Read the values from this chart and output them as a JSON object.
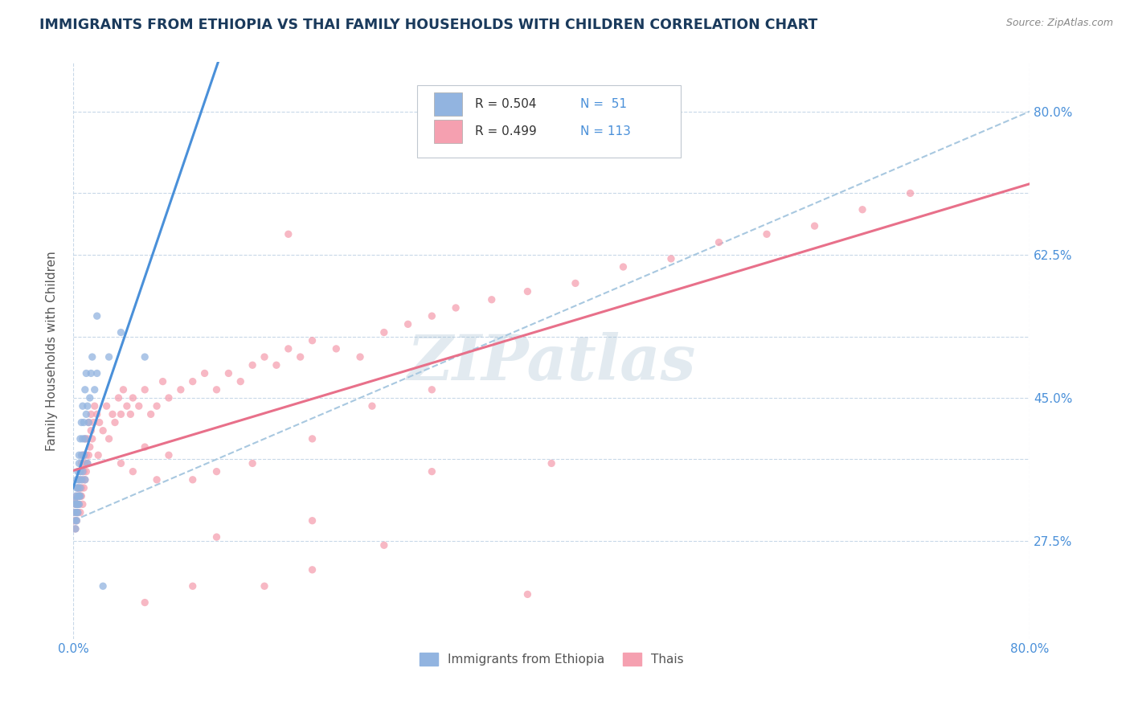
{
  "title": "IMMIGRANTS FROM ETHIOPIA VS THAI FAMILY HOUSEHOLDS WITH CHILDREN CORRELATION CHART",
  "source_text": "Source: ZipAtlas.com",
  "ylabel": "Family Households with Children",
  "xmin": 0.0,
  "xmax": 0.8,
  "ymin": 0.155,
  "ymax": 0.86,
  "ytick_positions": [
    0.275,
    0.375,
    0.45,
    0.525,
    0.625,
    0.7,
    0.8
  ],
  "ytick_labels": [
    "27.5%",
    "",
    "45.0%",
    "",
    "62.5%",
    "",
    "80.0%"
  ],
  "background_color": "#ffffff",
  "grid_color": "#c8d8e8",
  "title_color": "#1a3a5c",
  "watermark_text": "ZIPatlas",
  "watermark_color": "#a0bcd0",
  "legend_r1": "R = 0.504",
  "legend_n1": "N =  51",
  "legend_r2": "R = 0.499",
  "legend_n2": "N = 113",
  "legend_label1": "Immigrants from Ethiopia",
  "legend_label2": "Thais",
  "scatter_color1": "#92b4e0",
  "scatter_color2": "#f5a0b0",
  "line_color1": "#4a90d9",
  "line_color2": "#e8708a",
  "trend_line_color": "#a8c8e0",
  "scatter_alpha": 0.75,
  "scatter_size": 45,
  "ethiopia_x": [
    0.001,
    0.001,
    0.002,
    0.002,
    0.002,
    0.002,
    0.003,
    0.003,
    0.003,
    0.003,
    0.003,
    0.004,
    0.004,
    0.004,
    0.004,
    0.004,
    0.005,
    0.005,
    0.005,
    0.005,
    0.005,
    0.006,
    0.006,
    0.006,
    0.006,
    0.007,
    0.007,
    0.007,
    0.008,
    0.008,
    0.008,
    0.009,
    0.009,
    0.01,
    0.01,
    0.01,
    0.011,
    0.011,
    0.012,
    0.012,
    0.013,
    0.014,
    0.015,
    0.016,
    0.018,
    0.02,
    0.025,
    0.03,
    0.04,
    0.06,
    0.02
  ],
  "ethiopia_y": [
    0.325,
    0.31,
    0.3,
    0.33,
    0.32,
    0.29,
    0.34,
    0.32,
    0.31,
    0.35,
    0.3,
    0.33,
    0.32,
    0.36,
    0.31,
    0.34,
    0.33,
    0.37,
    0.35,
    0.32,
    0.38,
    0.36,
    0.34,
    0.4,
    0.33,
    0.38,
    0.42,
    0.35,
    0.4,
    0.36,
    0.44,
    0.38,
    0.42,
    0.4,
    0.46,
    0.35,
    0.43,
    0.48,
    0.44,
    0.37,
    0.42,
    0.45,
    0.48,
    0.5,
    0.46,
    0.48,
    0.22,
    0.5,
    0.53,
    0.5,
    0.55
  ],
  "thai_x": [
    0.001,
    0.001,
    0.002,
    0.002,
    0.002,
    0.003,
    0.003,
    0.003,
    0.003,
    0.004,
    0.004,
    0.004,
    0.005,
    0.005,
    0.005,
    0.005,
    0.006,
    0.006,
    0.006,
    0.007,
    0.007,
    0.007,
    0.008,
    0.008,
    0.008,
    0.009,
    0.009,
    0.009,
    0.01,
    0.01,
    0.01,
    0.011,
    0.011,
    0.012,
    0.012,
    0.013,
    0.013,
    0.014,
    0.015,
    0.015,
    0.016,
    0.017,
    0.018,
    0.02,
    0.021,
    0.022,
    0.025,
    0.028,
    0.03,
    0.033,
    0.035,
    0.038,
    0.04,
    0.042,
    0.045,
    0.048,
    0.05,
    0.055,
    0.06,
    0.065,
    0.07,
    0.075,
    0.08,
    0.09,
    0.1,
    0.11,
    0.12,
    0.13,
    0.14,
    0.15,
    0.16,
    0.17,
    0.18,
    0.19,
    0.2,
    0.22,
    0.24,
    0.26,
    0.28,
    0.3,
    0.32,
    0.35,
    0.38,
    0.42,
    0.46,
    0.5,
    0.54,
    0.58,
    0.62,
    0.66,
    0.7,
    0.04,
    0.05,
    0.06,
    0.07,
    0.08,
    0.1,
    0.12,
    0.15,
    0.18,
    0.2,
    0.25,
    0.3,
    0.06,
    0.1,
    0.16,
    0.2,
    0.26,
    0.38,
    0.3,
    0.4,
    0.12,
    0.2
  ],
  "thai_y": [
    0.325,
    0.3,
    0.31,
    0.32,
    0.29,
    0.33,
    0.3,
    0.32,
    0.31,
    0.32,
    0.34,
    0.31,
    0.33,
    0.35,
    0.32,
    0.34,
    0.33,
    0.36,
    0.31,
    0.34,
    0.37,
    0.33,
    0.35,
    0.38,
    0.32,
    0.36,
    0.34,
    0.38,
    0.37,
    0.35,
    0.4,
    0.36,
    0.38,
    0.37,
    0.4,
    0.38,
    0.42,
    0.39,
    0.41,
    0.43,
    0.4,
    0.42,
    0.44,
    0.43,
    0.38,
    0.42,
    0.41,
    0.44,
    0.4,
    0.43,
    0.42,
    0.45,
    0.43,
    0.46,
    0.44,
    0.43,
    0.45,
    0.44,
    0.46,
    0.43,
    0.44,
    0.47,
    0.45,
    0.46,
    0.47,
    0.48,
    0.46,
    0.48,
    0.47,
    0.49,
    0.5,
    0.49,
    0.51,
    0.5,
    0.52,
    0.51,
    0.5,
    0.53,
    0.54,
    0.55,
    0.56,
    0.57,
    0.58,
    0.59,
    0.61,
    0.62,
    0.64,
    0.65,
    0.66,
    0.68,
    0.7,
    0.37,
    0.36,
    0.39,
    0.35,
    0.38,
    0.35,
    0.36,
    0.37,
    0.65,
    0.4,
    0.44,
    0.46,
    0.2,
    0.22,
    0.22,
    0.24,
    0.27,
    0.21,
    0.36,
    0.37,
    0.28,
    0.3
  ]
}
